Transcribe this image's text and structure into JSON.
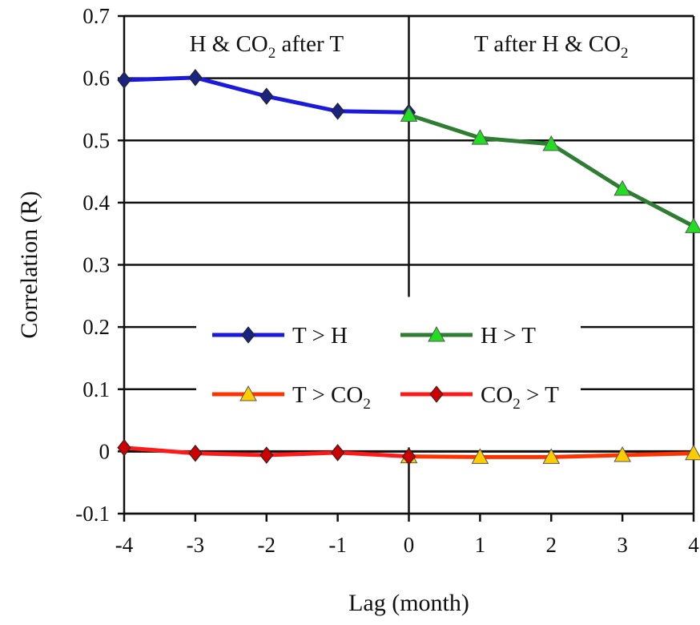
{
  "chart_data": {
    "type": "line",
    "xlabel": "Lag (month)",
    "ylabel": "Correlation (R)",
    "xlim": [
      -4,
      4
    ],
    "ylim": [
      -0.1,
      0.7
    ],
    "x_ticks": [
      -4,
      -3,
      -2,
      -1,
      0,
      1,
      2,
      3,
      4
    ],
    "y_ticks": [
      0.7,
      0.6,
      0.5,
      0.4,
      0.3,
      0.2,
      0.1,
      0,
      -0.1
    ],
    "x_tick_labels": [
      "-4",
      "-3",
      "-2",
      "-1",
      "0",
      "1",
      "2",
      "3",
      "4"
    ],
    "y_tick_labels": [
      "0.7",
      "0.6",
      "0.5",
      "0.4",
      "0.3",
      "0.2",
      "0.1",
      "0",
      "-0.1"
    ],
    "grid": "horizontal",
    "regions": [
      {
        "label": "H & CO",
        "subscript": "2",
        "suffix": " after T",
        "x_range": [
          -4,
          0
        ]
      },
      {
        "label": "T after H & CO",
        "subscript": "2",
        "suffix": "",
        "x_range": [
          0,
          4
        ]
      }
    ],
    "legend_position": "center",
    "series": [
      {
        "name": "T > H",
        "name_main": "T > H",
        "name_sub": "",
        "name_suffix": "",
        "color": "#1a1adc",
        "marker": "diamond",
        "marker_color": "#1a237e",
        "x": [
          -4,
          -3,
          -2,
          -1,
          0
        ],
        "y": [
          0.597,
          0.601,
          0.571,
          0.547,
          0.545
        ]
      },
      {
        "name": "H > T",
        "name_main": "H > T",
        "name_sub": "",
        "name_suffix": "",
        "color": "#2e7d32",
        "marker": "triangle",
        "marker_color": "#22dd22",
        "x": [
          0,
          1,
          2,
          3,
          4
        ],
        "y": [
          0.541,
          0.504,
          0.494,
          0.422,
          0.362
        ]
      },
      {
        "name": "T > CO2",
        "name_main": "T > CO",
        "name_sub": "2",
        "name_suffix": "",
        "color": "#ff3300",
        "marker": "triangle",
        "marker_color": "#ffcc00",
        "x": [
          0,
          1,
          2,
          3,
          4
        ],
        "y": [
          -0.008,
          -0.009,
          -0.009,
          -0.006,
          -0.003
        ]
      },
      {
        "name": "CO2 > T",
        "name_main": "CO",
        "name_sub": "2",
        "name_suffix": " > T",
        "color": "#ff1a1a",
        "marker": "diamond",
        "marker_color": "#cc0000",
        "x": [
          -4,
          -3,
          -2,
          -1,
          0
        ],
        "y": [
          0.006,
          -0.003,
          -0.006,
          -0.002,
          -0.008
        ]
      }
    ]
  }
}
